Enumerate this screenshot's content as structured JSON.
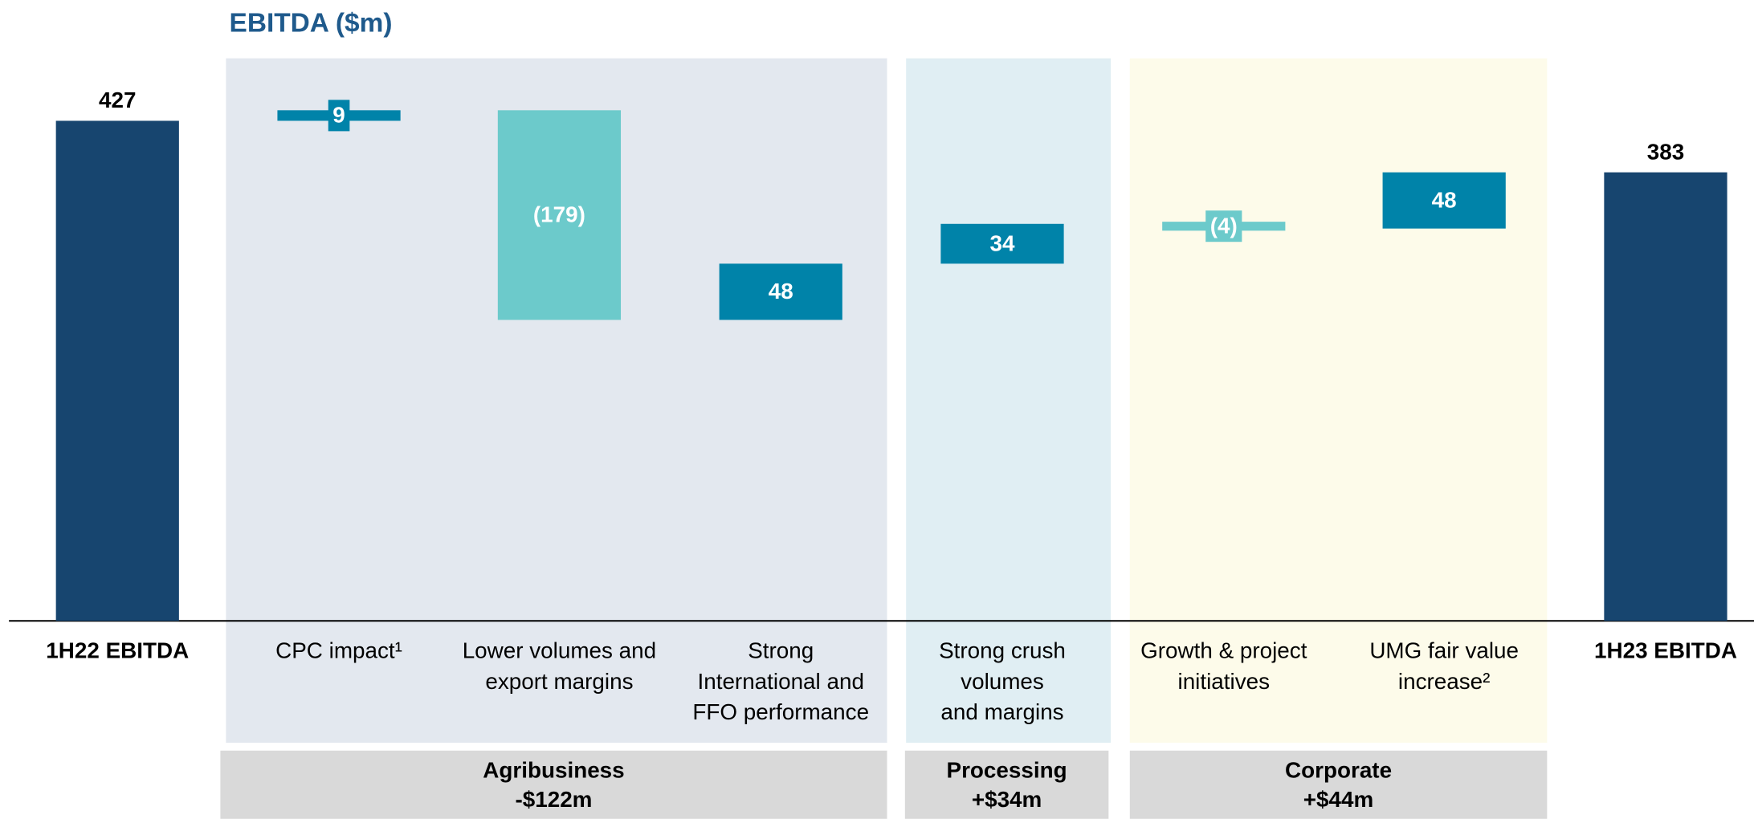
{
  "chart_data": {
    "type": "waterfall",
    "title": "EBITDA ($m)",
    "categories": [
      [
        "1H22 EBITDA"
      ],
      [
        "CPC impact¹"
      ],
      [
        "Lower volumes and",
        "export margins"
      ],
      [
        "Strong",
        "International and",
        "FFO performance"
      ],
      [
        "Strong crush",
        "volumes",
        "and margins"
      ],
      [
        "Growth & project",
        "initiatives"
      ],
      [
        "UMG fair value",
        "increase²"
      ],
      [
        "1H23 EBITDA"
      ]
    ],
    "measure": [
      "total",
      "relative",
      "relative",
      "relative",
      "relative",
      "relative",
      "relative",
      "total"
    ],
    "values": [
      427,
      9,
      -179,
      48,
      34,
      -4,
      48,
      383
    ],
    "value_labels": [
      "427",
      "9",
      "(179)",
      "48",
      "34",
      "(4)",
      "48",
      "383"
    ],
    "colors": {
      "total": "#17456f",
      "increase": "#0083a9",
      "decrease": "#6ccacb"
    },
    "ylim": [
      0,
      530
    ],
    "groups": [
      {
        "name": "Agribusiness",
        "value": -122,
        "value_label": "-$122m",
        "start": 1,
        "end": 3,
        "color": "#e3e8ef"
      },
      {
        "name": "Processing",
        "value": 34,
        "value_label": "+$34m",
        "start": 4,
        "end": 4,
        "color": "#e0eef3"
      },
      {
        "name": "Corporate",
        "value": 44,
        "value_label": "+$44m",
        "start": 5,
        "end": 6,
        "color": "#fdfbea"
      }
    ]
  }
}
